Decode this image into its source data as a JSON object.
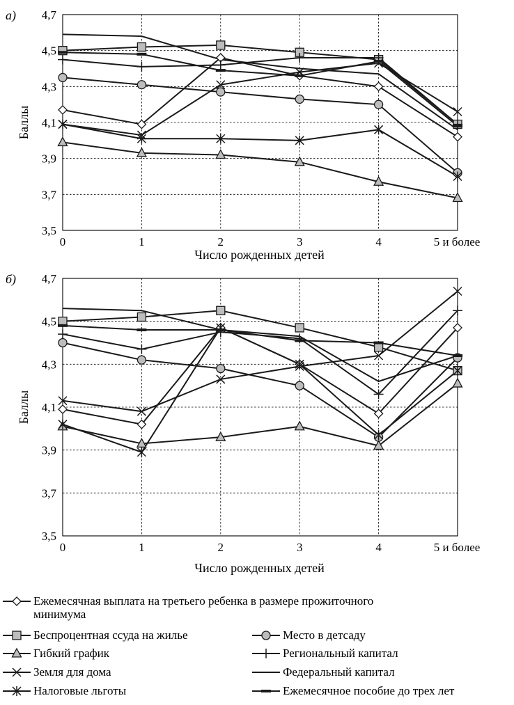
{
  "panels": [
    {
      "tag": "а)",
      "xlabel": "Число рожденных детей",
      "ylabel": "Баллы"
    },
    {
      "tag": "б)",
      "xlabel": "Число рожденных детей",
      "ylabel": "Баллы"
    }
  ],
  "legend": [
    {
      "marker": "diamond",
      "label": "Ежемесячная выплата на третьего ребенка в размере прожиточного",
      "label2": "минимума"
    },
    {
      "marker": "square",
      "label": "Беспроцентная ссуда на жилье"
    },
    {
      "marker": "circle",
      "label": "Место в детсаду"
    },
    {
      "marker": "triangle",
      "label": "Гибкий график"
    },
    {
      "marker": "plus",
      "label": "Региональный капитал"
    },
    {
      "marker": "cross",
      "label": "Земля для дома"
    },
    {
      "marker": "none",
      "label": "Федеральный капитал"
    },
    {
      "marker": "star",
      "label": "Налоговые льготы"
    },
    {
      "marker": "dash",
      "label": "Ежемесячное пособие до трех лет"
    }
  ],
  "chart_data": [
    {
      "type": "line",
      "xlabel": "Число рожденных детей",
      "ylabel": "Баллы",
      "categories": [
        "0",
        "1",
        "2",
        "3",
        "4",
        "5 и более"
      ],
      "ylim": [
        3.5,
        4.7
      ],
      "yticks": [
        "3,5",
        "3,7",
        "3,9",
        "4,1",
        "4,3",
        "4,5",
        "4,7"
      ],
      "grid": true,
      "series": [
        {
          "name": "Ежемесячная выплата на третьего ребенка в размере прожиточного минимума",
          "marker": "diamond",
          "values": [
            4.17,
            4.09,
            4.46,
            4.36,
            4.3,
            4.02
          ]
        },
        {
          "name": "Беспроцентная ссуда на жилье",
          "marker": "square",
          "values": [
            4.5,
            4.52,
            4.53,
            4.49,
            4.45,
            4.09
          ]
        },
        {
          "name": "Место в детсаду",
          "marker": "circle",
          "values": [
            4.35,
            4.31,
            4.27,
            4.23,
            4.2,
            3.82
          ]
        },
        {
          "name": "Гибкий график",
          "marker": "triangle",
          "values": [
            3.99,
            3.93,
            3.92,
            3.88,
            3.77,
            3.68
          ]
        },
        {
          "name": "Региональный капитал",
          "marker": "plus",
          "values": [
            4.45,
            4.41,
            4.42,
            4.46,
            4.46,
            4.09
          ]
        },
        {
          "name": "Земля для дома",
          "marker": "cross",
          "values": [
            4.09,
            4.03,
            4.31,
            4.38,
            4.43,
            4.16
          ]
        },
        {
          "name": "Федеральный капитал",
          "marker": "none",
          "values": [
            4.59,
            4.58,
            4.45,
            4.4,
            4.37,
            4.06
          ]
        },
        {
          "name": "Налоговые льготы",
          "marker": "star",
          "values": [
            4.09,
            4.01,
            4.01,
            4.0,
            4.06,
            3.8
          ]
        },
        {
          "name": "Ежемесячное пособие до трех лет",
          "marker": "dash",
          "values": [
            4.49,
            4.48,
            4.39,
            4.36,
            4.44,
            4.08
          ]
        }
      ]
    },
    {
      "type": "line",
      "xlabel": "Число рожденных детей",
      "ylabel": "Баллы",
      "categories": [
        "0",
        "1",
        "2",
        "3",
        "4",
        "5 и более"
      ],
      "ylim": [
        3.5,
        4.7
      ],
      "yticks": [
        "3,5",
        "3,7",
        "3,9",
        "4,1",
        "4,3",
        "4,5",
        "4,7"
      ],
      "grid": true,
      "series": [
        {
          "name": "Ежемесячная выплата на третьего ребенка в размере прожиточного минимума",
          "marker": "diamond",
          "values": [
            4.09,
            4.02,
            4.47,
            4.3,
            4.07,
            4.47
          ]
        },
        {
          "name": "Беспроцентная ссуда на жилье",
          "marker": "square",
          "values": [
            4.5,
            4.52,
            4.55,
            4.47,
            4.38,
            4.27
          ]
        },
        {
          "name": "Место в детсаду",
          "marker": "circle",
          "values": [
            4.4,
            4.32,
            4.28,
            4.2,
            3.96,
            4.33
          ]
        },
        {
          "name": "Гибкий график",
          "marker": "triangle",
          "values": [
            4.01,
            3.93,
            3.96,
            4.01,
            3.92,
            4.21
          ]
        },
        {
          "name": "Региональный капитал",
          "marker": "plus",
          "values": [
            4.44,
            4.37,
            4.45,
            4.42,
            4.16,
            4.55
          ]
        },
        {
          "name": "Земля для дома",
          "marker": "cross",
          "values": [
            4.13,
            4.08,
            4.23,
            4.29,
            4.34,
            4.64
          ]
        },
        {
          "name": "Федеральный капитал",
          "marker": "none",
          "values": [
            4.56,
            4.55,
            4.46,
            4.43,
            4.22,
            4.34
          ]
        },
        {
          "name": "Налоговые льготы",
          "marker": "star",
          "values": [
            4.02,
            3.89,
            4.47,
            4.3,
            3.97,
            4.27
          ]
        },
        {
          "name": "Ежемесячное пособие до трех лет",
          "marker": "dash",
          "values": [
            4.48,
            4.46,
            4.46,
            4.41,
            4.4,
            4.34
          ]
        }
      ]
    }
  ]
}
